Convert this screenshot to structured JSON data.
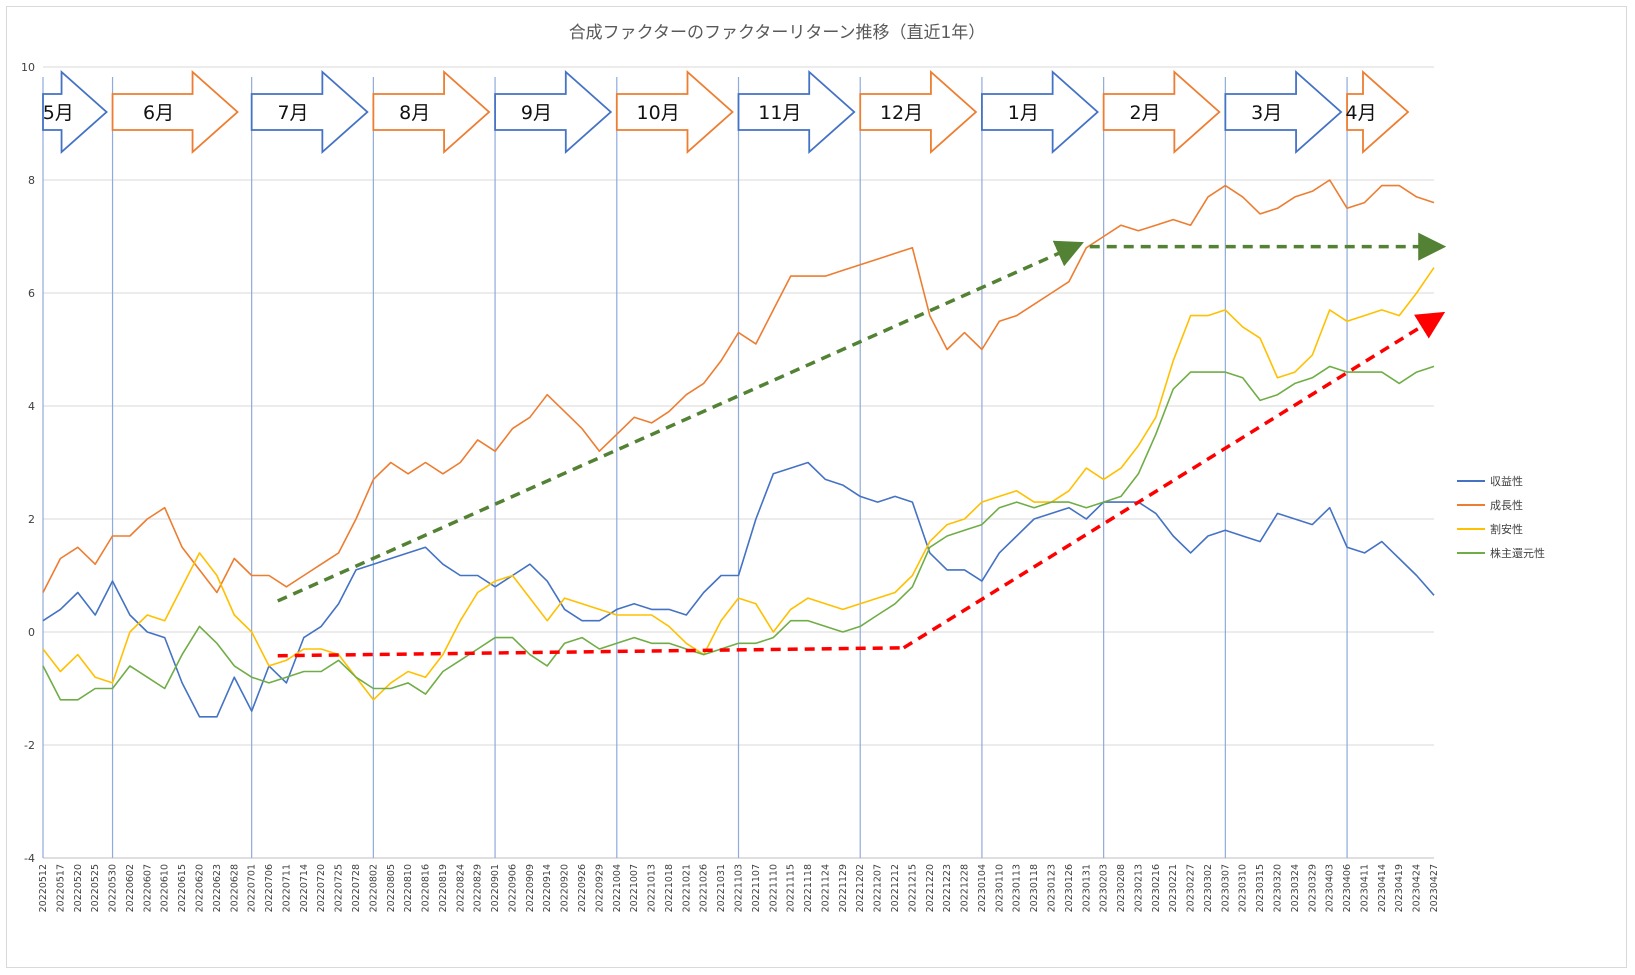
{
  "colors": {
    "blue": "#4472C4",
    "orange": "#ED7D31",
    "yellow": "#FFC000",
    "green": "#70AD47",
    "trend_green": "#548235",
    "trend_red": "#FF0000",
    "grid": "#d9d9d9",
    "month_line": "#8FAADC"
  },
  "chart_data": {
    "type": "line",
    "title": "合成ファクターのファクターリターン推移（直近1年）",
    "y_ticks": [
      "10",
      "8",
      "6",
      "4",
      "2",
      "0",
      "-2",
      "-4"
    ],
    "ylim": [
      -4,
      10
    ],
    "grid": true,
    "legend_position": "right",
    "x_tick_labels": [
      "20220512",
      "20220517",
      "20220520",
      "20220525",
      "20220530",
      "20220602",
      "20220607",
      "20220610",
      "20220615",
      "20220620",
      "20220623",
      "20220628",
      "20220701",
      "20220706",
      "20220711",
      "20220714",
      "20220720",
      "20220725",
      "20220728",
      "20220802",
      "20220805",
      "20220810",
      "20220816",
      "20220819",
      "20220824",
      "20220829",
      "20220901",
      "20220906",
      "20220909",
      "20220914",
      "20220920",
      "20220926",
      "20220929",
      "20221004",
      "20221007",
      "20221013",
      "20221018",
      "20221021",
      "20221026",
      "20221031",
      "20221103",
      "20221107",
      "20221110",
      "20221115",
      "20221118",
      "20221124",
      "20221129",
      "20221202",
      "20221207",
      "20221212",
      "20221215",
      "20221220",
      "20221223",
      "20221228",
      "20230104",
      "20230110",
      "20230113",
      "20230118",
      "20230123",
      "20230126",
      "20230131",
      "20230203",
      "20230208",
      "20230213",
      "20230216",
      "20230221",
      "20230227",
      "20230302",
      "20230307",
      "20230310",
      "20230315",
      "20230320",
      "20230324",
      "20230329",
      "20230403",
      "20230406",
      "20230411",
      "20230414",
      "20230419",
      "20230424",
      "20230427"
    ],
    "months": [
      {
        "label": "5月",
        "index": 0,
        "color": "#4472C4"
      },
      {
        "label": "6月",
        "index": 4,
        "color": "#ED7D31"
      },
      {
        "label": "7月",
        "index": 12,
        "color": "#4472C4"
      },
      {
        "label": "8月",
        "index": 19,
        "color": "#ED7D31"
      },
      {
        "label": "9月",
        "index": 26,
        "color": "#4472C4"
      },
      {
        "label": "10月",
        "index": 33,
        "color": "#ED7D31"
      },
      {
        "label": "11月",
        "index": 40,
        "color": "#4472C4"
      },
      {
        "label": "12月",
        "index": 47,
        "color": "#ED7D31"
      },
      {
        "label": "1月",
        "index": 54,
        "color": "#4472C4"
      },
      {
        "label": "2月",
        "index": 61,
        "color": "#ED7D31"
      },
      {
        "label": "3月",
        "index": 68,
        "color": "#4472C4"
      },
      {
        "label": "4月",
        "index": 75,
        "color": "#ED7D31"
      }
    ],
    "series": [
      {
        "name": "収益性",
        "color": "#4472C4",
        "values": [
          0.2,
          0.4,
          0.7,
          0.3,
          0.9,
          0.3,
          0.0,
          -0.1,
          -0.9,
          -1.5,
          -1.5,
          -0.8,
          -1.4,
          -0.6,
          -0.9,
          -0.1,
          0.1,
          0.5,
          1.1,
          1.2,
          1.3,
          1.4,
          1.5,
          1.2,
          1.0,
          1.0,
          0.8,
          1.0,
          1.2,
          0.9,
          0.4,
          0.2,
          0.2,
          0.4,
          0.5,
          0.4,
          0.4,
          0.3,
          0.7,
          1.0,
          1.0,
          2.0,
          2.8,
          2.9,
          3.0,
          2.7,
          2.6,
          2.4,
          2.3,
          2.4,
          2.3,
          1.4,
          1.1,
          1.1,
          0.9,
          1.4,
          1.7,
          2.0,
          2.1,
          2.2,
          2.0,
          2.3,
          2.3,
          2.3,
          2.1,
          1.7,
          1.4,
          1.7,
          1.8,
          1.7,
          1.6,
          2.1,
          2.0,
          1.9,
          2.2,
          1.5,
          1.4,
          1.6,
          1.3,
          1.0,
          0.65
        ]
      },
      {
        "name": "成長性",
        "color": "#ED7D31",
        "values": [
          0.7,
          1.3,
          1.5,
          1.2,
          1.7,
          1.7,
          2.0,
          2.2,
          1.5,
          1.1,
          0.7,
          1.3,
          1.0,
          1.0,
          0.8,
          1.0,
          1.2,
          1.4,
          2.0,
          2.7,
          3.0,
          2.8,
          3.0,
          2.8,
          3.0,
          3.4,
          3.2,
          3.6,
          3.8,
          4.2,
          3.9,
          3.6,
          3.2,
          3.5,
          3.8,
          3.7,
          3.9,
          4.2,
          4.4,
          4.8,
          5.3,
          5.1,
          5.7,
          6.3,
          6.3,
          6.3,
          6.4,
          6.5,
          6.6,
          6.7,
          6.8,
          5.6,
          5.0,
          5.3,
          5.0,
          5.5,
          5.6,
          5.8,
          6.0,
          6.2,
          6.8,
          7.0,
          7.2,
          7.1,
          7.2,
          7.3,
          7.2,
          7.7,
          7.9,
          7.7,
          7.4,
          7.5,
          7.7,
          7.8,
          8.0,
          7.5,
          7.6,
          7.9,
          7.9,
          7.7,
          7.6
        ]
      },
      {
        "name": "割安性",
        "color": "#FFC000",
        "values": [
          -0.3,
          -0.7,
          -0.4,
          -0.8,
          -0.9,
          0.0,
          0.3,
          0.2,
          0.8,
          1.4,
          1.0,
          0.3,
          0.0,
          -0.6,
          -0.5,
          -0.3,
          -0.3,
          -0.4,
          -0.8,
          -1.2,
          -0.9,
          -0.7,
          -0.8,
          -0.4,
          0.2,
          0.7,
          0.9,
          1.0,
          0.6,
          0.2,
          0.6,
          0.5,
          0.4,
          0.3,
          0.3,
          0.3,
          0.1,
          -0.2,
          -0.4,
          0.2,
          0.6,
          0.5,
          0.0,
          0.4,
          0.6,
          0.5,
          0.4,
          0.5,
          0.6,
          0.7,
          1.0,
          1.6,
          1.9,
          2.0,
          2.3,
          2.4,
          2.5,
          2.3,
          2.3,
          2.5,
          2.9,
          2.7,
          2.9,
          3.3,
          3.8,
          4.8,
          5.6,
          5.6,
          5.7,
          5.4,
          5.2,
          4.5,
          4.6,
          4.9,
          5.7,
          5.5,
          5.6,
          5.7,
          5.6,
          6.0,
          6.45
        ]
      },
      {
        "name": "株主還元性",
        "color": "#70AD47",
        "values": [
          -0.6,
          -1.2,
          -1.2,
          -1.0,
          -1.0,
          -0.6,
          -0.8,
          -1.0,
          -0.4,
          0.1,
          -0.2,
          -0.6,
          -0.8,
          -0.9,
          -0.8,
          -0.7,
          -0.7,
          -0.5,
          -0.8,
          -1.0,
          -1.0,
          -0.9,
          -1.1,
          -0.7,
          -0.5,
          -0.3,
          -0.1,
          -0.1,
          -0.4,
          -0.6,
          -0.2,
          -0.1,
          -0.3,
          -0.2,
          -0.1,
          -0.2,
          -0.2,
          -0.3,
          -0.4,
          -0.3,
          -0.2,
          -0.2,
          -0.1,
          0.2,
          0.2,
          0.1,
          0.0,
          0.1,
          0.3,
          0.5,
          0.8,
          1.5,
          1.7,
          1.8,
          1.9,
          2.2,
          2.3,
          2.2,
          2.3,
          2.3,
          2.2,
          2.3,
          2.4,
          2.8,
          3.5,
          4.3,
          4.6,
          4.6,
          4.6,
          4.5,
          4.1,
          4.2,
          4.4,
          4.5,
          4.7,
          4.6,
          4.6,
          4.6,
          4.4,
          4.6,
          4.7
        ]
      }
    ],
    "trend_arrows": [
      {
        "color": "#548235",
        "from": [
          13.5,
          0.55
        ],
        "to": [
          59.5,
          6.85
        ]
      },
      {
        "color": "#548235",
        "from": [
          60.2,
          6.82
        ],
        "to": [
          80.3,
          6.82
        ]
      },
      {
        "color": "#FF0000",
        "from": [
          13.5,
          -0.42
        ],
        "to": [
          49.5,
          -0.28
        ]
      },
      {
        "color": "#FF0000",
        "from": [
          49.5,
          -0.28
        ],
        "to": [
          80.3,
          5.6
        ]
      }
    ]
  }
}
